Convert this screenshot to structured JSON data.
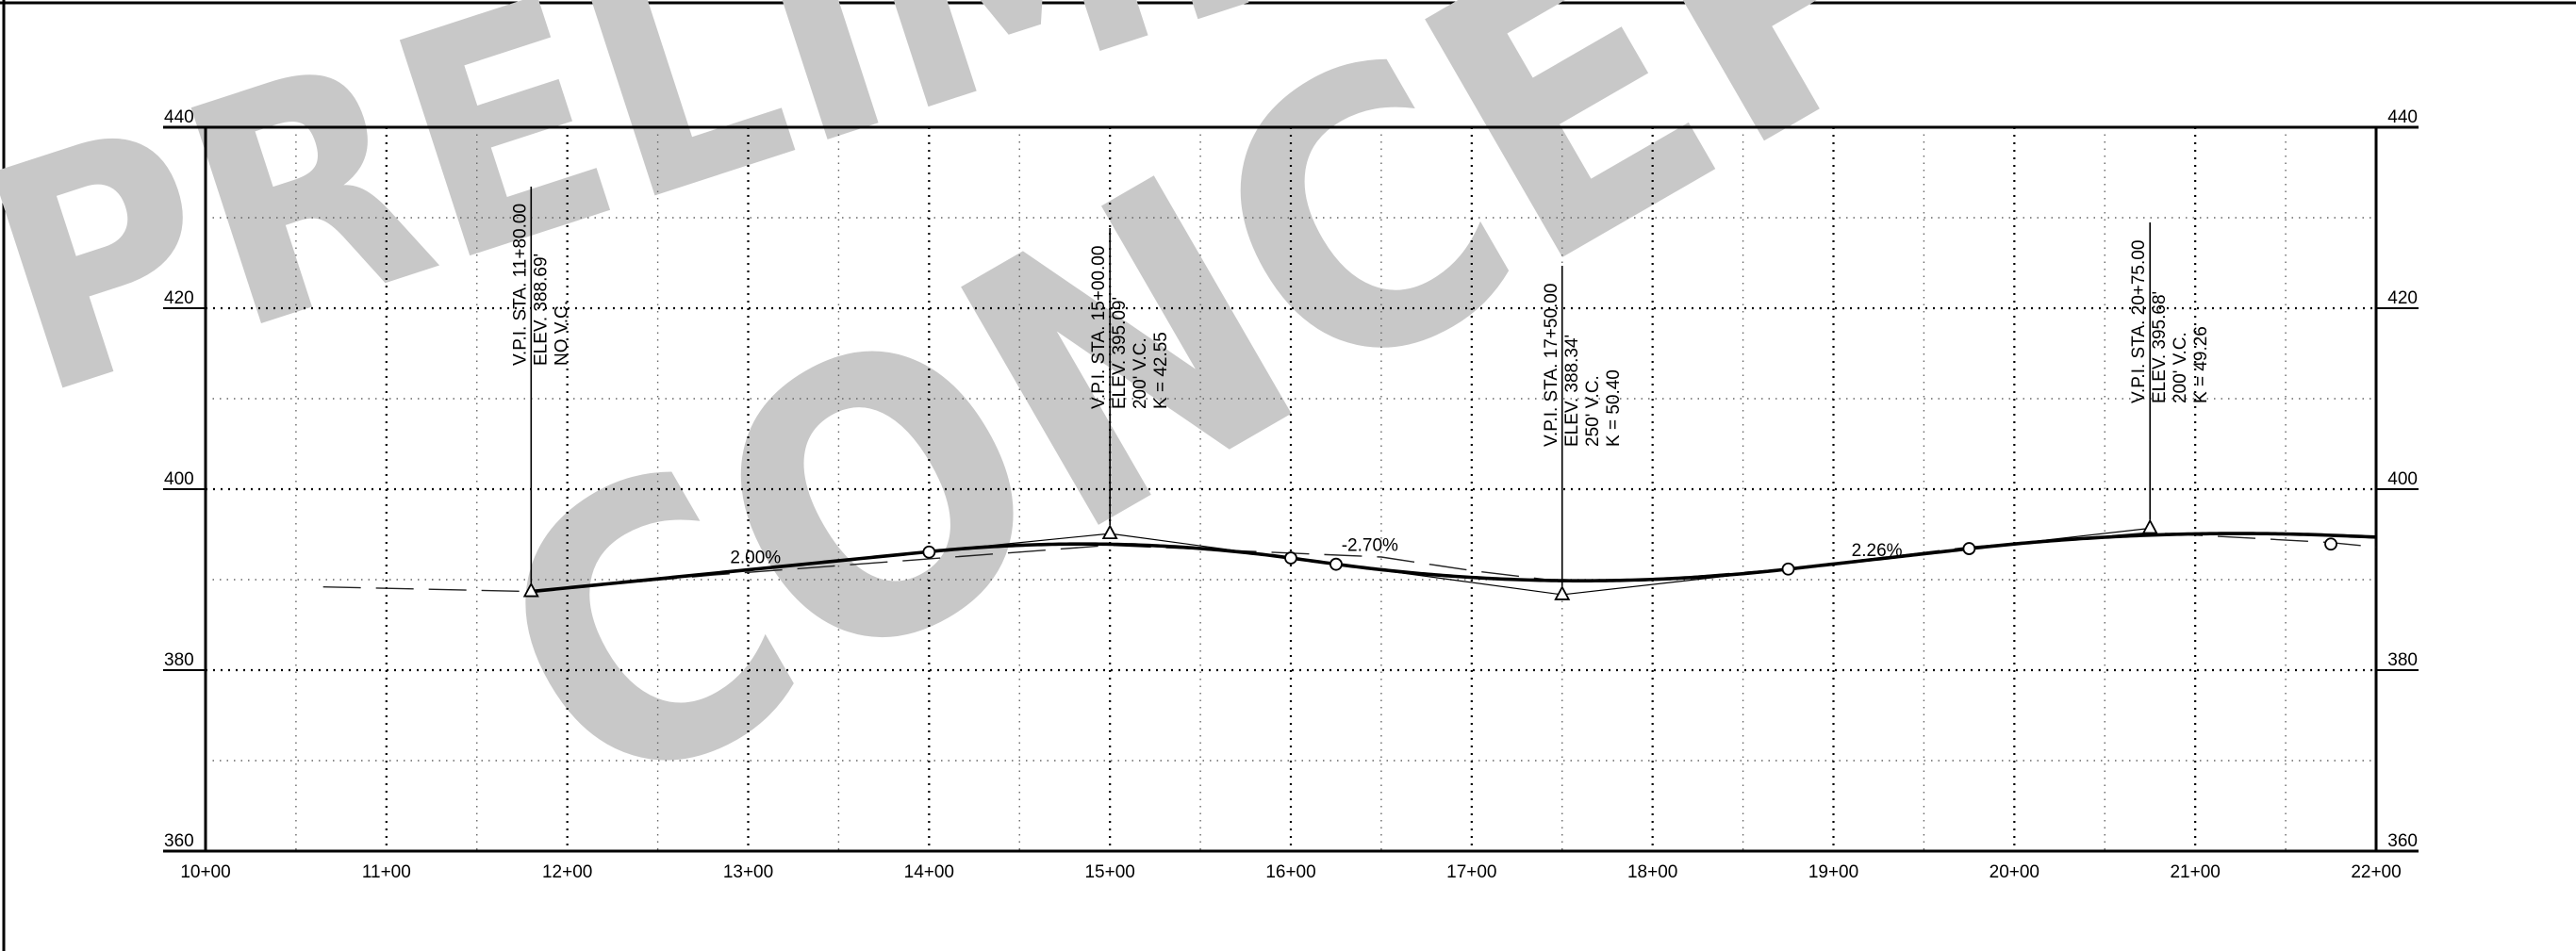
{
  "watermark": {
    "line1": "PRELIMINARY",
    "line2": "CONCEPT",
    "color": "#c8c8c8"
  },
  "chart_data": {
    "type": "line",
    "title": "",
    "xlabel": "",
    "ylabel": "",
    "xlim": [
      1000,
      2200
    ],
    "ylim": [
      360,
      440
    ],
    "grid": true,
    "x_ticks": [
      "10+00",
      "11+00",
      "12+00",
      "13+00",
      "14+00",
      "15+00",
      "16+00",
      "17+00",
      "18+00",
      "19+00",
      "20+00",
      "21+00",
      "22+00"
    ],
    "y_ticks": [
      "360",
      "380",
      "400",
      "420",
      "440"
    ],
    "existing_ground": [
      {
        "x": 1065,
        "y": 389.2
      },
      {
        "x": 1180,
        "y": 388.69
      },
      {
        "x": 1280,
        "y": 390.5
      },
      {
        "x": 1400,
        "y": 392.3
      },
      {
        "x": 1500,
        "y": 393.8
      },
      {
        "x": 1650,
        "y": 392.5
      },
      {
        "x": 1700,
        "y": 391.0
      },
      {
        "x": 1750,
        "y": 389.8
      },
      {
        "x": 1800,
        "y": 390.0
      },
      {
        "x": 1875,
        "y": 391.2
      },
      {
        "x": 1975,
        "y": 393.6
      },
      {
        "x": 2075,
        "y": 395.2
      },
      {
        "x": 2175,
        "y": 394.1
      },
      {
        "x": 2200,
        "y": 393.6
      }
    ],
    "profile_points": [
      {
        "x": 1400,
        "y": 393.05
      },
      {
        "x": 1600,
        "y": 392.39
      },
      {
        "x": 1625,
        "y": 391.7
      },
      {
        "x": 1875,
        "y": 391.17
      },
      {
        "x": 1975,
        "y": 393.43
      },
      {
        "x": 2175,
        "y": 393.93
      }
    ],
    "grades": [
      {
        "label": "2.00%",
        "x": 1290,
        "y": 391.8
      },
      {
        "label": "-2.70%",
        "x": 1628,
        "y": 393.2
      },
      {
        "label": "2.26%",
        "x": 1910,
        "y": 392.6
      }
    ],
    "vpis": [
      {
        "station": 1180,
        "elev": 388.69,
        "label_top": 400,
        "lines": [
          "V.P.I.  STA.  11+80.00",
          "ELEV.  388.69'",
          "NO V.C."
        ]
      },
      {
        "station": 1500,
        "elev": 395.09,
        "label_top": 400,
        "lines": [
          "V.P.I.  STA.  15+00.00",
          "ELEV.  395.09'",
          "200'  V.C.",
          "K  =  42.55"
        ]
      },
      {
        "station": 1750,
        "elev": 388.34,
        "label_top": 400,
        "lines": [
          "V.P.I.  STA.  17+50.00",
          "ELEV.  388.34'",
          "250'  V.C.",
          "K  =  50.40"
        ]
      },
      {
        "station": 2075,
        "elev": 395.68,
        "label_top": 400,
        "lines": [
          "V.P.I.  STA.  20+75.00",
          "ELEV.  395.68'",
          "200'  V.C.",
          "K  =  49.26"
        ]
      }
    ]
  }
}
